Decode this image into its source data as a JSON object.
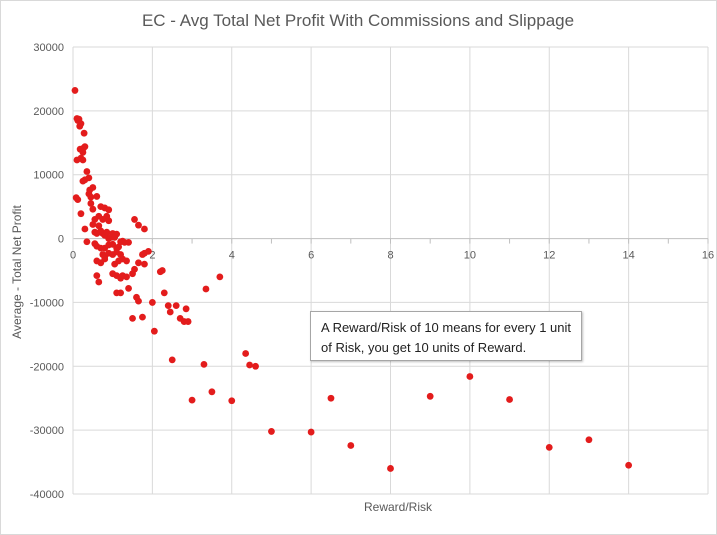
{
  "chart_data": {
    "type": "scatter",
    "title": "EC - Avg Total Net Profit With Commissions and Slippage",
    "xlabel": "Reward/Risk",
    "ylabel": "Average - Total Net Profit",
    "xlim": [
      0,
      16
    ],
    "ylim": [
      -40000,
      30000
    ],
    "x_ticks": [
      "0",
      "2",
      "4",
      "6",
      "8",
      "10",
      "12",
      "14",
      "16"
    ],
    "y_ticks": [
      "30000",
      "20000",
      "10000",
      "0",
      "-10000",
      "-20000",
      "-30000",
      "-40000"
    ],
    "grid": true,
    "legend": "none",
    "marker_color": "#e31c1c",
    "annotation": [
      "A Reward/Risk of 10 means for every 1 unit",
      "of Risk, you get 10 units of Reward."
    ],
    "points": [
      [
        0.05,
        23200
      ],
      [
        0.1,
        18800
      ],
      [
        0.12,
        18500
      ],
      [
        0.15,
        18700
      ],
      [
        0.17,
        17600
      ],
      [
        0.2,
        18000
      ],
      [
        0.28,
        16500
      ],
      [
        0.27,
        14200
      ],
      [
        0.3,
        14400
      ],
      [
        0.18,
        14000
      ],
      [
        0.25,
        13500
      ],
      [
        0.1,
        12300
      ],
      [
        0.2,
        12600
      ],
      [
        0.25,
        12300
      ],
      [
        0.3,
        9200
      ],
      [
        0.25,
        9000
      ],
      [
        0.35,
        10500
      ],
      [
        0.4,
        9500
      ],
      [
        0.5,
        8000
      ],
      [
        0.4,
        7000
      ],
      [
        0.42,
        7600
      ],
      [
        0.45,
        6500
      ],
      [
        0.6,
        6600
      ],
      [
        0.08,
        6400
      ],
      [
        0.12,
        6100
      ],
      [
        0.45,
        5500
      ],
      [
        0.5,
        4600
      ],
      [
        0.2,
        3900
      ],
      [
        0.55,
        3000
      ],
      [
        0.65,
        3500
      ],
      [
        0.7,
        5000
      ],
      [
        0.8,
        4800
      ],
      [
        0.85,
        3500
      ],
      [
        0.9,
        4500
      ],
      [
        0.75,
        3000
      ],
      [
        0.9,
        2800
      ],
      [
        0.5,
        2200
      ],
      [
        0.65,
        2000
      ],
      [
        0.3,
        1500
      ],
      [
        0.55,
        1000
      ],
      [
        0.6,
        800
      ],
      [
        0.7,
        1200
      ],
      [
        0.75,
        800
      ],
      [
        0.8,
        500
      ],
      [
        0.85,
        1000
      ],
      [
        0.9,
        0
      ],
      [
        0.95,
        200
      ],
      [
        1.0,
        800
      ],
      [
        1.1,
        700
      ],
      [
        1.05,
        200
      ],
      [
        0.35,
        -500
      ],
      [
        0.55,
        -800
      ],
      [
        0.6,
        -1200
      ],
      [
        0.7,
        -1500
      ],
      [
        0.8,
        -1500
      ],
      [
        0.9,
        -1000
      ],
      [
        1.0,
        -900
      ],
      [
        1.1,
        -1500
      ],
      [
        1.15,
        -1300
      ],
      [
        1.2,
        -500
      ],
      [
        1.25,
        -400
      ],
      [
        1.3,
        -600
      ],
      [
        1.4,
        -600
      ],
      [
        0.75,
        -2500
      ],
      [
        0.8,
        -2800
      ],
      [
        0.9,
        -2300
      ],
      [
        1.0,
        -2500
      ],
      [
        1.1,
        -2100
      ],
      [
        1.2,
        -2500
      ],
      [
        0.6,
        -3500
      ],
      [
        0.7,
        -3800
      ],
      [
        0.8,
        -3200
      ],
      [
        1.05,
        -4000
      ],
      [
        1.15,
        -3500
      ],
      [
        1.25,
        -3200
      ],
      [
        1.35,
        -3500
      ],
      [
        1.65,
        2100
      ],
      [
        1.8,
        1500
      ],
      [
        1.55,
        3000
      ],
      [
        1.75,
        -2500
      ],
      [
        1.8,
        -2300
      ],
      [
        1.65,
        -3800
      ],
      [
        1.8,
        -4000
      ],
      [
        1.9,
        -2000
      ],
      [
        0.6,
        -5800
      ],
      [
        0.65,
        -6800
      ],
      [
        1.0,
        -5500
      ],
      [
        1.1,
        -5800
      ],
      [
        1.2,
        -6200
      ],
      [
        1.25,
        -5800
      ],
      [
        1.35,
        -6000
      ],
      [
        1.5,
        -5500
      ],
      [
        1.55,
        -4800
      ],
      [
        1.4,
        -7800
      ],
      [
        1.1,
        -8500
      ],
      [
        1.2,
        -8500
      ],
      [
        1.6,
        -9200
      ],
      [
        1.65,
        -9800
      ],
      [
        2.0,
        -10000
      ],
      [
        1.5,
        -12500
      ],
      [
        1.75,
        -12300
      ],
      [
        2.05,
        -14500
      ],
      [
        2.25,
        -5000
      ],
      [
        2.2,
        -5200
      ],
      [
        2.3,
        -8500
      ],
      [
        2.4,
        -10500
      ],
      [
        2.45,
        -11500
      ],
      [
        2.6,
        -10500
      ],
      [
        2.7,
        -12500
      ],
      [
        2.85,
        -11000
      ],
      [
        2.8,
        -13000
      ],
      [
        2.9,
        -13000
      ],
      [
        2.5,
        -19000
      ],
      [
        3.0,
        -25300
      ],
      [
        3.3,
        -19700
      ],
      [
        3.35,
        -7900
      ],
      [
        3.5,
        -24000
      ],
      [
        3.7,
        -6000
      ],
      [
        4.0,
        -25400
      ],
      [
        4.35,
        -18000
      ],
      [
        4.45,
        -19800
      ],
      [
        4.6,
        -20000
      ],
      [
        5.0,
        -30200
      ],
      [
        6.0,
        -30300
      ],
      [
        6.5,
        -25000
      ],
      [
        7.0,
        -32400
      ],
      [
        8.0,
        -36000
      ],
      [
        9.0,
        -24700
      ],
      [
        10.0,
        -21600
      ],
      [
        11.0,
        -25200
      ],
      [
        12.0,
        -32700
      ],
      [
        13.0,
        -31500
      ],
      [
        14.0,
        -35500
      ]
    ]
  }
}
